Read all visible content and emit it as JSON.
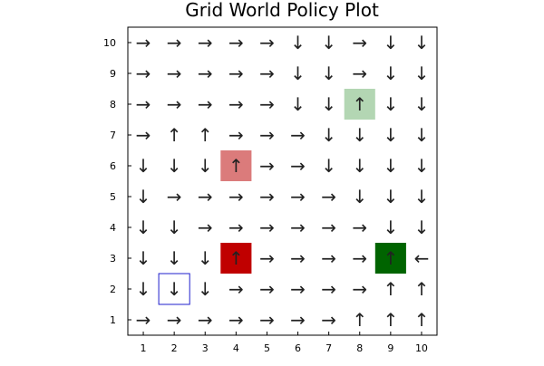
{
  "chart_data": {
    "type": "grid-policy",
    "title": "Grid World Policy Plot",
    "xlabel": "",
    "ylabel": "",
    "xlim": [
      0.5,
      10.5
    ],
    "ylim": [
      0.5,
      10.5
    ],
    "xticks": [
      "1",
      "2",
      "3",
      "4",
      "5",
      "6",
      "7",
      "8",
      "9",
      "10"
    ],
    "yticks": [
      "1",
      "2",
      "3",
      "4",
      "5",
      "6",
      "7",
      "8",
      "9",
      "10"
    ],
    "grid": false,
    "arrow_glyphs": {
      "right": "→",
      "left": "←",
      "up": "↑",
      "down": "↓"
    },
    "policy_rows": [
      {
        "y": 10,
        "actions": [
          "right",
          "right",
          "right",
          "right",
          "right",
          "down",
          "down",
          "right",
          "down",
          "down"
        ]
      },
      {
        "y": 9,
        "actions": [
          "right",
          "right",
          "right",
          "right",
          "right",
          "down",
          "down",
          "right",
          "down",
          "down"
        ]
      },
      {
        "y": 8,
        "actions": [
          "right",
          "right",
          "right",
          "right",
          "right",
          "down",
          "down",
          "up",
          "down",
          "down"
        ]
      },
      {
        "y": 7,
        "actions": [
          "right",
          "up",
          "up",
          "right",
          "right",
          "right",
          "down",
          "down",
          "down",
          "down"
        ]
      },
      {
        "y": 6,
        "actions": [
          "down",
          "down",
          "down",
          "up",
          "right",
          "right",
          "down",
          "down",
          "down",
          "down"
        ]
      },
      {
        "y": 5,
        "actions": [
          "down",
          "right",
          "right",
          "right",
          "right",
          "right",
          "right",
          "down",
          "down",
          "down"
        ]
      },
      {
        "y": 4,
        "actions": [
          "down",
          "down",
          "right",
          "right",
          "right",
          "right",
          "right",
          "right",
          "down",
          "down"
        ]
      },
      {
        "y": 3,
        "actions": [
          "down",
          "down",
          "down",
          "up",
          "right",
          "right",
          "right",
          "right",
          "up",
          "left"
        ]
      },
      {
        "y": 2,
        "actions": [
          "down",
          "down",
          "down",
          "right",
          "right",
          "right",
          "right",
          "right",
          "up",
          "up"
        ]
      },
      {
        "y": 1,
        "actions": [
          "right",
          "right",
          "right",
          "right",
          "right",
          "right",
          "right",
          "up",
          "up",
          "up"
        ]
      }
    ],
    "highlights": [
      {
        "x": 8,
        "y": 8,
        "kind": "filled",
        "color": "#b3d6b3"
      },
      {
        "x": 4,
        "y": 6,
        "kind": "filled",
        "color": "#db7b7b"
      },
      {
        "x": 4,
        "y": 3,
        "kind": "filled",
        "color": "#c00000"
      },
      {
        "x": 9,
        "y": 3,
        "kind": "filled",
        "color": "#006400"
      },
      {
        "x": 2,
        "y": 2,
        "kind": "outline",
        "color": "#1f1fcc"
      }
    ]
  }
}
